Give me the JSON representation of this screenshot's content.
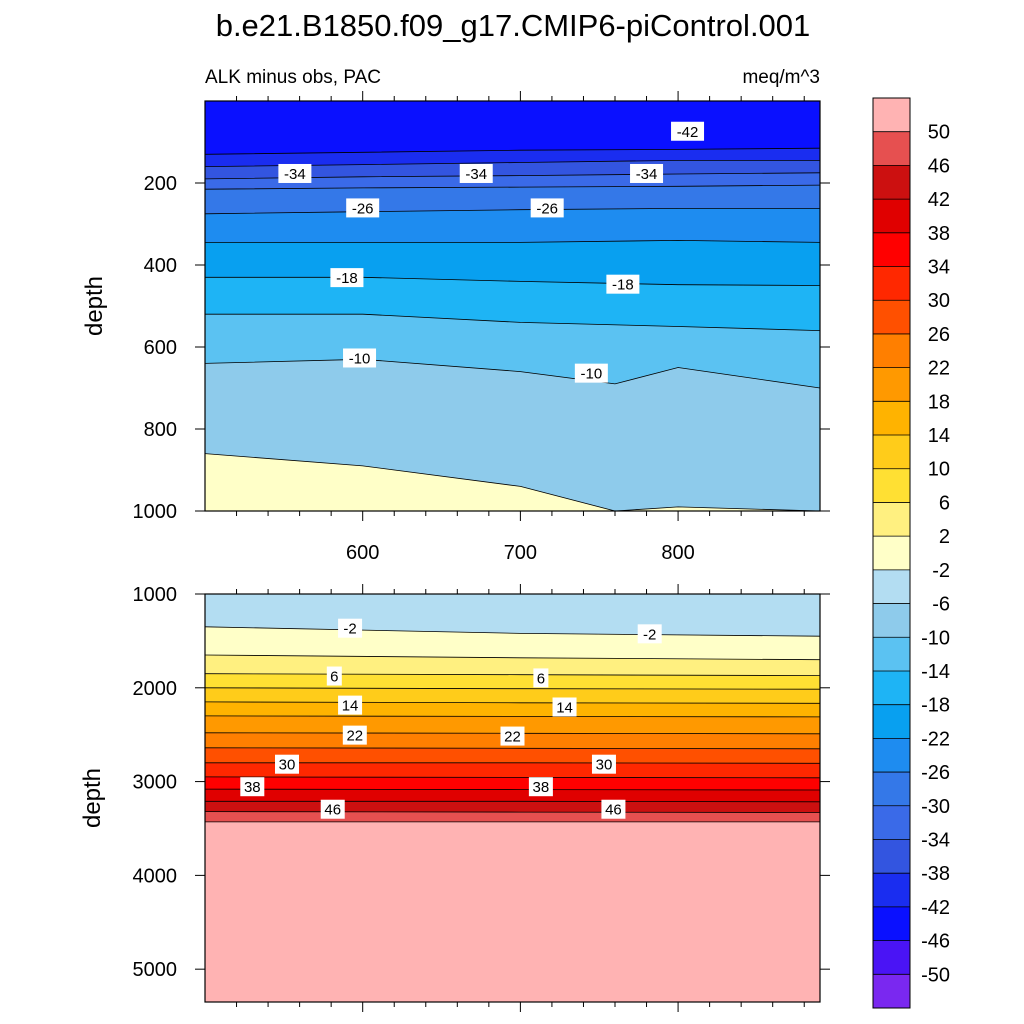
{
  "title": "b.e21.B1850.f09_g17.CMIP6-piControl.001",
  "chart_data": [
    {
      "type": "contour",
      "subtitle_left": "ALK minus obs, PAC",
      "subtitle_right": "meq/m^3",
      "ylabel": "depth",
      "xlim": [
        500,
        890
      ],
      "ylim": [
        0,
        1000
      ],
      "y_reversed": true,
      "x_ticks": [
        600,
        700,
        800
      ],
      "y_ticks": [
        200,
        400,
        600,
        800,
        1000
      ],
      "contour_boundaries": [
        {
          "level": -42,
          "depth_at_x": [
            [
              500,
              130
            ],
            [
              600,
              125
            ],
            [
              700,
              120
            ],
            [
              800,
              118
            ],
            [
              890,
              115
            ]
          ]
        },
        {
          "level": -38,
          "depth_at_x": [
            [
              500,
              160
            ],
            [
              600,
              155
            ],
            [
              700,
              150
            ],
            [
              800,
              145
            ],
            [
              890,
              145
            ]
          ]
        },
        {
          "level": -34,
          "depth_at_x": [
            [
              500,
              190
            ],
            [
              600,
              185
            ],
            [
              700,
              182
            ],
            [
              800,
              178
            ],
            [
              890,
              175
            ]
          ]
        },
        {
          "level": -30,
          "depth_at_x": [
            [
              500,
              215
            ],
            [
              600,
              212
            ],
            [
              700,
              210
            ],
            [
              800,
              208
            ],
            [
              890,
              205
            ]
          ]
        },
        {
          "level": -26,
          "depth_at_x": [
            [
              500,
              275
            ],
            [
              600,
              270
            ],
            [
              700,
              265
            ],
            [
              800,
              262
            ],
            [
              890,
              262
            ]
          ]
        },
        {
          "level": -22,
          "depth_at_x": [
            [
              500,
              345
            ],
            [
              600,
              345
            ],
            [
              700,
              345
            ],
            [
              800,
              340
            ],
            [
              890,
              345
            ]
          ]
        },
        {
          "level": -18,
          "depth_at_x": [
            [
              500,
              430
            ],
            [
              600,
              430
            ],
            [
              700,
              440
            ],
            [
              800,
              448
            ],
            [
              890,
              450
            ]
          ]
        },
        {
          "level": -14,
          "depth_at_x": [
            [
              500,
              520
            ],
            [
              600,
              520
            ],
            [
              700,
              540
            ],
            [
              800,
              550
            ],
            [
              890,
              560
            ]
          ]
        },
        {
          "level": -10,
          "depth_at_x": [
            [
              500,
              640
            ],
            [
              600,
              630
            ],
            [
              700,
              660
            ],
            [
              760,
              690
            ],
            [
              800,
              650
            ],
            [
              890,
              700
            ]
          ]
        },
        {
          "level": -6,
          "depth_at_x": [
            [
              500,
              860
            ],
            [
              600,
              890
            ],
            [
              700,
              940
            ],
            [
              760,
              1000
            ],
            [
              800,
              990
            ],
            [
              890,
              1000
            ]
          ]
        }
      ],
      "contour_labels": [
        {
          "text": "-42",
          "x": 806,
          "depth": 75
        },
        {
          "text": "-34",
          "x": 557,
          "depth": 178
        },
        {
          "text": "-34",
          "x": 672,
          "depth": 178
        },
        {
          "text": "-34",
          "x": 780,
          "depth": 178
        },
        {
          "text": "-26",
          "x": 600,
          "depth": 262
        },
        {
          "text": "-26",
          "x": 717,
          "depth": 262
        },
        {
          "text": "-18",
          "x": 590,
          "depth": 432
        },
        {
          "text": "-18",
          "x": 765,
          "depth": 448
        },
        {
          "text": "-10",
          "x": 598,
          "depth": 628
        },
        {
          "text": "-10",
          "x": 745,
          "depth": 665
        }
      ]
    },
    {
      "type": "contour",
      "ylabel": "depth",
      "xlim": [
        500,
        890
      ],
      "ylim": [
        1000,
        5350
      ],
      "y_reversed": true,
      "y_ticks": [
        1000,
        2000,
        3000,
        4000,
        5000
      ],
      "contour_boundaries": [
        {
          "level": -2,
          "depth_at_x": [
            [
              500,
              1350
            ],
            [
              700,
              1420
            ],
            [
              890,
              1450
            ]
          ]
        },
        {
          "level": 2,
          "depth_at_x": [
            [
              500,
              1650
            ],
            [
              700,
              1680
            ],
            [
              890,
              1700
            ]
          ]
        },
        {
          "level": 6,
          "depth_at_x": [
            [
              500,
              1850
            ],
            [
              700,
              1860
            ],
            [
              890,
              1870
            ]
          ]
        },
        {
          "level": 10,
          "depth_at_x": [
            [
              500,
              2000
            ],
            [
              700,
              2010
            ],
            [
              890,
              2015
            ]
          ]
        },
        {
          "level": 14,
          "depth_at_x": [
            [
              500,
              2150
            ],
            [
              700,
              2160
            ],
            [
              890,
              2165
            ]
          ]
        },
        {
          "level": 18,
          "depth_at_x": [
            [
              500,
              2300
            ],
            [
              700,
              2305
            ],
            [
              890,
              2310
            ]
          ]
        },
        {
          "level": 22,
          "depth_at_x": [
            [
              500,
              2480
            ],
            [
              700,
              2485
            ],
            [
              890,
              2490
            ]
          ]
        },
        {
          "level": 26,
          "depth_at_x": [
            [
              500,
              2640
            ],
            [
              700,
              2645
            ],
            [
              890,
              2650
            ]
          ]
        },
        {
          "level": 30,
          "depth_at_x": [
            [
              500,
              2800
            ],
            [
              700,
              2800
            ],
            [
              890,
              2805
            ]
          ]
        },
        {
          "level": 34,
          "depth_at_x": [
            [
              500,
              2950
            ],
            [
              700,
              2955
            ],
            [
              890,
              2960
            ]
          ]
        },
        {
          "level": 38,
          "depth_at_x": [
            [
              500,
              3080
            ],
            [
              700,
              3085
            ],
            [
              890,
              3090
            ]
          ]
        },
        {
          "level": 42,
          "depth_at_x": [
            [
              500,
              3210
            ],
            [
              700,
              3210
            ],
            [
              890,
              3215
            ]
          ]
        },
        {
          "level": 46,
          "depth_at_x": [
            [
              500,
              3320
            ],
            [
              700,
              3325
            ],
            [
              890,
              3330
            ]
          ]
        },
        {
          "level": 50,
          "depth_at_x": [
            [
              500,
              3430
            ],
            [
              700,
              3430
            ],
            [
              890,
              3430
            ]
          ]
        }
      ],
      "contour_labels": [
        {
          "text": "-2",
          "x": 592,
          "depth": 1370
        },
        {
          "text": "-2",
          "x": 782,
          "depth": 1430
        },
        {
          "text": "6",
          "x": 582,
          "depth": 1880
        },
        {
          "text": "6",
          "x": 713,
          "depth": 1900
        },
        {
          "text": "14",
          "x": 592,
          "depth": 2190
        },
        {
          "text": "14",
          "x": 728,
          "depth": 2210
        },
        {
          "text": "22",
          "x": 595,
          "depth": 2510
        },
        {
          "text": "22",
          "x": 695,
          "depth": 2520
        },
        {
          "text": "30",
          "x": 552,
          "depth": 2820
        },
        {
          "text": "30",
          "x": 753,
          "depth": 2820
        },
        {
          "text": "38",
          "x": 530,
          "depth": 3060
        },
        {
          "text": "38",
          "x": 713,
          "depth": 3060
        },
        {
          "text": "46",
          "x": 581,
          "depth": 3300
        },
        {
          "text": "46",
          "x": 759,
          "depth": 3300
        }
      ]
    }
  ],
  "colorbar": {
    "labels": [
      "50",
      "46",
      "42",
      "38",
      "34",
      "30",
      "26",
      "22",
      "18",
      "14",
      "10",
      "6",
      "2",
      "-2",
      "-6",
      "-10",
      "-14",
      "-18",
      "-22",
      "-26",
      "-30",
      "-34",
      "-38",
      "-42",
      "-46",
      "-50"
    ],
    "colors": [
      "#FFB3B3",
      "#E65050",
      "#CC1010",
      "#E00000",
      "#FF0000",
      "#FF2800",
      "#FF5000",
      "#FF7F00",
      "#FF9900",
      "#FFB300",
      "#FFCC1A",
      "#FFE033",
      "#FFF080",
      "#FFFFC8",
      "#B3DDF2",
      "#8ECBEB",
      "#5BC2F2",
      "#1EB4F5",
      "#08A0F0",
      "#1E8CF0",
      "#3478E8",
      "#3A6AE8",
      "#3355E0",
      "#1A2DF0",
      "#0A10FF",
      "#4A14F5",
      "#7A28F0"
    ]
  }
}
